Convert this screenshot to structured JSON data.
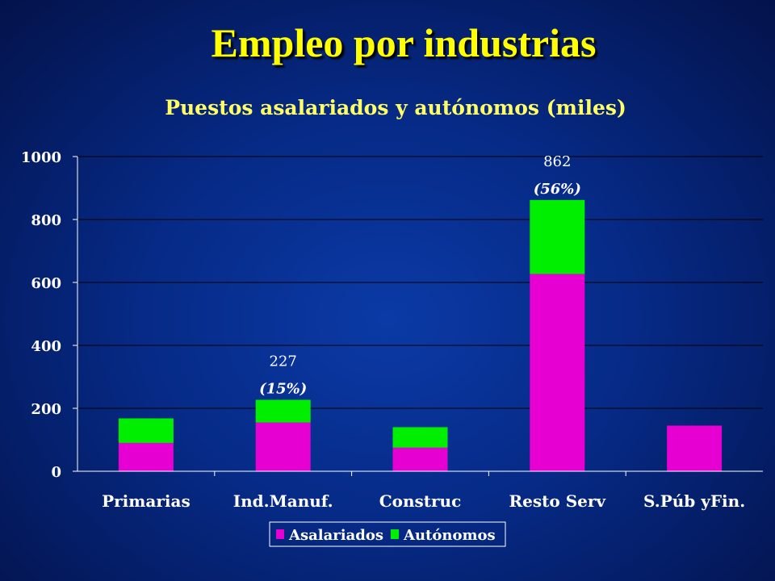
{
  "slide": {
    "title": "Empleo por industrias"
  },
  "colors": {
    "asalariados": "#e600d2",
    "autonomos": "#00ee00",
    "grid": "#000000"
  },
  "chart_data": {
    "type": "bar",
    "stacked": true,
    "title": "Puestos asalariados y autónomos (miles)",
    "xlabel": "",
    "ylabel": "",
    "ylim": [
      0,
      1000
    ],
    "yticks": [
      "0",
      "200",
      "400",
      "600",
      "800",
      "1000"
    ],
    "grid": true,
    "legend_position": "bottom",
    "categories": [
      "Primarias",
      "Ind.Manuf.",
      "Construc",
      "Resto Serv",
      "S.Púb yFin."
    ],
    "series": [
      {
        "name": "Asalariados",
        "values": [
          90,
          155,
          75,
          627,
          145
        ]
      },
      {
        "name": "Autónomos",
        "values": [
          78,
          72,
          65,
          235,
          0
        ]
      }
    ],
    "annotations": [
      {
        "category": "Ind.Manuf.",
        "total": "227",
        "share": "(15%)"
      },
      {
        "category": "Resto Serv",
        "total": "862",
        "share": "(56%)"
      }
    ]
  }
}
